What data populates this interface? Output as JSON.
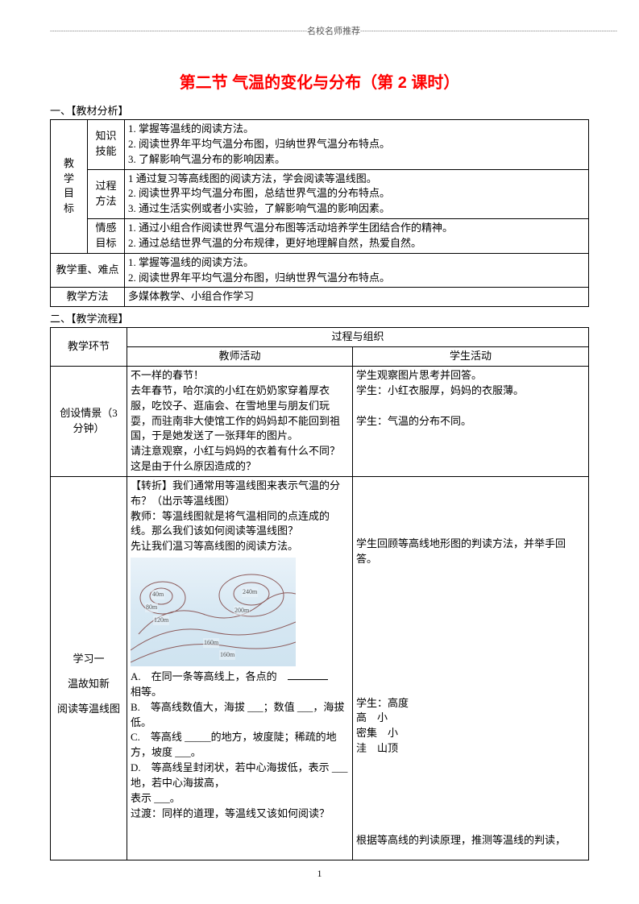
{
  "header": "┈┈┈┈┈┈┈┈┈┈┈┈┈┈┈┈┈┈┈┈┈┈┈┈┈┈┈┈┈名校名师推荐┈┈┈┈┈┈┈┈┈┈┈┈┈┈┈┈┈┈┈┈┈┈┈┈┈┈┈┈┈",
  "title": "第二节 气温的变化与分布（第 2 课时）",
  "section1_label": "一、【教材分析】",
  "table1": {
    "col1": "教学目标",
    "rows": [
      {
        "h": "知识技能",
        "c": "1. 掌握等温线的阅读方法。\n2. 阅读世界年平均气温分布图，归纳世界气温分布特点。\n3. 了解影响气温分布的影响因素。"
      },
      {
        "h": "过程方法",
        "c": "1 通过复习等高线图的阅读方法，学会阅读等温线图。\n2. 阅读世界平均气温分布图，总结世界气温的分布特点。\n3. 通过生活实例或者小实验，了解影响气温的影响因素。"
      },
      {
        "h": "情感目标",
        "c": "1. 通过小组合作阅读世界气温分布图等活动培养学生团结合作的精神。\n2. 通过总结世界气温的分布规律，更好地理解自然，热爱自然。"
      }
    ],
    "row_zhong": {
      "h": "教学重、难点",
      "c": "1. 掌握等温线的阅读方法。\n2. 阅读世界年平均气温分布图，归纳世界气温分布特点。"
    },
    "row_fangfa": {
      "h": "教学方法",
      "c": "多媒体教学、小组合作学习"
    }
  },
  "section2_label": "二、【教学流程】",
  "table2": {
    "header": {
      "c1": "教学环节",
      "c2": "过程与组织",
      "c2a": "教师活动",
      "c2b": "学生活动"
    },
    "row1": {
      "env": "创设情景（3 分钟）",
      "teacher": "不一样的春节！\n去年春节，哈尔滨的小红在奶奶家穿着厚衣服，吃饺子、逛庙会、在雪地里与朋友们玩耍，而驻南非大使馆工作的妈妈却不能回到祖国，于是她发送了一张拜年的图片。\n请注意观察，小红与妈妈的衣着有什么不同？这是由于什么原因造成的？",
      "student": "学生观察图片思考并回答。\n学生：小红衣服厚，妈妈的衣服薄。\n\n学生：气温的分布不同。"
    },
    "row2": {
      "env_line1": "学习一",
      "env_line2": "温故知新",
      "env_line3": "阅读等温线图",
      "teacher_p1": "【转折】我们通常用等温线图来表示气温的分布？（出示等温线图）\n教师：等温线图就是将气温相同的点连成的线。那么我们该如何阅读等温线图？\n先让我们温习等高线图的阅读方法。",
      "contour": {
        "labels": [
          "40m",
          "80m",
          "120m",
          "240m",
          "200m",
          "160m",
          "160m"
        ],
        "line_color": "#8b5a5a",
        "bg_top": "#e9f2f9",
        "bg_bot": "#cfe3f0"
      },
      "qA": "A.　在同一条等高线上，各点的　",
      "qA2": "相等。",
      "qB": "B.　等高线数值大，海拔 ___；数值 ___，海拔低。",
      "qC": "C.　等高线 _____的地方，坡度陡；稀疏的地方，坡度 ___。",
      "qD": "D.　等高线呈封闭状，若中心海拔低，表示 ___地，若中心海拔高，",
      "qD2": "表示 ___。",
      "transition": "过渡：同样的道理，等温线又该如何阅读？",
      "student_p1": "学生回顾等高线地形图的判读方法，并举手回答。",
      "student_p2": "学生：高度\n高　小\n密集　小\n洼　山顶",
      "student_p3": "根据等高线的判读原理，推测等温线的判读，"
    }
  },
  "page_number": "1"
}
